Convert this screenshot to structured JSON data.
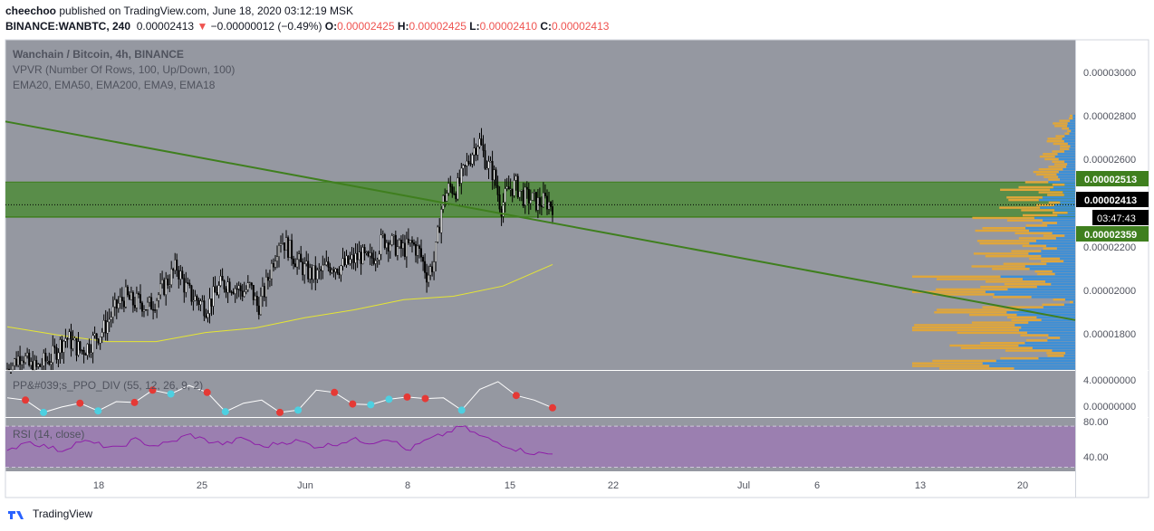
{
  "header": {
    "author": "cheechoo",
    "published_text": "published on TradingView.com, June 18, 2020 03:12:19 MSK",
    "symbol": "BINANCE:WANBTC, 240",
    "last": "0.00002413",
    "change": "−0.00000012 (−0.49%)",
    "o_label": "O:",
    "o": "0.00002425",
    "h_label": "H:",
    "h": "0.00002425",
    "l_label": "L:",
    "l": "0.00002410",
    "c_label": "C:",
    "c": "0.00002413"
  },
  "legend": {
    "title": "Wanchain / Bitcoin, 4h, BINANCE",
    "vpvr": "VPVR (Number Of Rows, 100, Up/Down, 100)",
    "ema": "EMA20, EMA50, EMA200, EMA9, EMA18"
  },
  "price_axis": {
    "ticks": [
      "0.00003000",
      "0.00002800",
      "0.00002600",
      "0.00002200",
      "0.00002000",
      "0.00001800"
    ],
    "badge_upper": "0.00002513",
    "badge_last": "0.00002413",
    "badge_timer": "03:47:43",
    "badge_lower": "0.00002359"
  },
  "ppo_pane": {
    "label": "PP&#039;s_PPO_DIV (55, 12, 26, 9, 2)",
    "ticks": [
      "4.00000000",
      "0.00000000"
    ]
  },
  "rsi_pane": {
    "label": "RSI (14, close)",
    "ticks": [
      "80.00",
      "40.00"
    ]
  },
  "time_axis": {
    "ticks": [
      "18",
      "25",
      "Jun",
      "8",
      "15",
      "22",
      "Jul",
      "6",
      "13",
      "20"
    ]
  },
  "brand": {
    "name": "TradingView"
  },
  "colors": {
    "pane_bg": "#9598a1",
    "zone": "#4f8b3a",
    "trendline": "#3f7f1e",
    "ema": "#e6e632",
    "vp_up": "#3d8fd6",
    "vp_down": "#e0a63a",
    "rsi_band": "#9b7fb0",
    "rsi_line": "#8e1fa8",
    "ppo_line": "#ffffff",
    "ppo_dot_red": "#e53935",
    "ppo_dot_cyan": "#4dd0e1",
    "badge_green": "#3f7f1e",
    "badge_black": "#000000"
  },
  "chart_data": {
    "type": "candlestick",
    "symbol": "WANBTC",
    "timeframe": "4h",
    "x_ticks": [
      "18",
      "25",
      "Jun",
      "8",
      "15",
      "22",
      "Jul",
      "6",
      "13",
      "20"
    ],
    "y_ticks": [
      3e-05,
      2.8e-05,
      2.6e-05,
      2.2e-05,
      2e-05,
      1.8e-05
    ],
    "ylim": [
      1.685e-05,
      3.14e-05
    ],
    "close_path": [
      1.69e-05,
      1.72e-05,
      1.76e-05,
      1.7e-05,
      1.69e-05,
      1.72e-05,
      1.74e-05,
      1.79e-05,
      1.83e-05,
      1.8e-05,
      1.77e-05,
      1.79e-05,
      1.83e-05,
      1.86e-05,
      1.92e-05,
      1.97e-05,
      2.01e-05,
      1.98e-05,
      1.99e-05,
      1.96e-05,
      1.99e-05,
      2.04e-05,
      2.09e-05,
      2.14e-05,
      2.06e-05,
      2.01e-05,
      1.99e-05,
      1.96e-05,
      2.01e-05,
      2.06e-05,
      2.07e-05,
      2.05e-05,
      2.03e-05,
      2.05e-05,
      1.96e-05,
      2.04e-05,
      2.16e-05,
      2.27e-05,
      2.23e-05,
      2.18e-05,
      2.14e-05,
      2.11e-05,
      2.1e-05,
      2.13e-05,
      2.15e-05,
      2.14e-05,
      2.15e-05,
      2.17e-05,
      2.19e-05,
      2.16e-05,
      2.2e-05,
      2.26e-05,
      2.25e-05,
      2.22e-05,
      2.22e-05,
      2.24e-05,
      2.2e-05,
      2.1e-05,
      2.17e-05,
      2.42e-05,
      2.49e-05,
      2.48e-05,
      2.56e-05,
      2.64e-05,
      2.7e-05,
      2.6e-05,
      2.55e-05,
      2.4e-05,
      2.48e-05,
      2.5e-05,
      2.45e-05,
      2.44e-05,
      2.42e-05,
      2.43e-05,
      2.413e-05
    ],
    "ema_path": [
      1.875e-05,
      1.84e-05,
      1.81e-05,
      1.81e-05,
      1.85e-05,
      1.87e-05,
      1.915e-05,
      1.95e-05,
      1.995e-05,
      2.01e-05,
      2.055e-05,
      2.15e-05
    ],
    "resistance_zone": [
      2.359e-05,
      2.513e-05
    ],
    "last_price": 2.413e-05,
    "trendline": {
      "start": 2.78e-05,
      "end": 1.905e-05
    },
    "volume_profile_rows": 100,
    "ppo_ylim": [
      -1,
      5
    ],
    "ppo_path": [
      1.5,
      1.2,
      -0.4,
      0.3,
      0.8,
      -0.2,
      1.0,
      0.9,
      2.5,
      2.0,
      3.1,
      2.2,
      -0.3,
      0.8,
      1.2,
      -0.4,
      -0.1,
      2.5,
      2.2,
      0.7,
      0.6,
      1.3,
      1.6,
      1.4,
      1.5,
      -0.1,
      2.6,
      3.6,
      1.8,
      1.2,
      0.2
    ],
    "ppo_tops": [
      1,
      4,
      7,
      8,
      11,
      15,
      18,
      19,
      22,
      23,
      28,
      30
    ],
    "ppo_bottoms": [
      2,
      5,
      9,
      12,
      16,
      20,
      21,
      25
    ],
    "rsi_ylim": [
      25,
      90
    ],
    "rsi_band": [
      30,
      80
    ],
    "rsi_path": [
      48,
      62,
      56,
      50,
      62,
      58,
      52,
      64,
      56,
      60,
      70,
      62,
      58,
      66,
      54,
      60,
      62,
      55,
      58,
      64,
      60,
      66,
      50,
      62,
      70,
      80,
      68,
      60,
      52,
      47,
      46
    ]
  }
}
